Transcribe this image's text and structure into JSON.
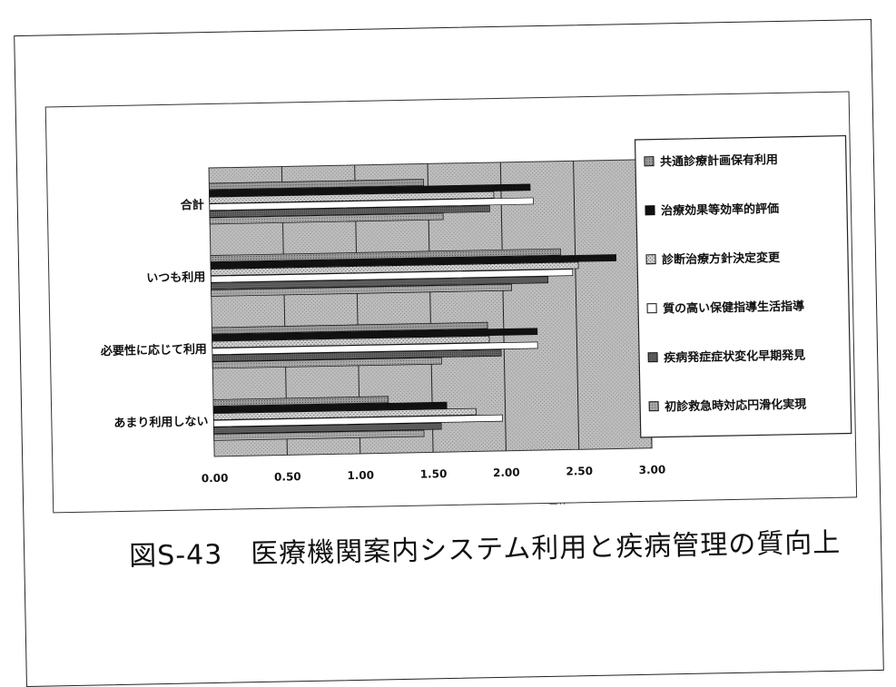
{
  "caption": "図S-43　医療機関案内システム利用と疾病管理の質向上",
  "chart_data": {
    "type": "bar",
    "orientation": "horizontal",
    "categories": [
      "合計",
      "いつも利用",
      "必要性に応じて利用",
      "あまり利用しない"
    ],
    "series": [
      {
        "name": "共通診療計画保有利用",
        "values": [
          1.47,
          2.4,
          1.89,
          1.2
        ]
      },
      {
        "name": "治療効果等効率的評価",
        "values": [
          2.2,
          2.78,
          2.23,
          1.6
        ]
      },
      {
        "name": "診断治療方針決定変更",
        "values": [
          1.95,
          2.52,
          1.9,
          1.8
        ]
      },
      {
        "name": "質の高い保健指導生活指導",
        "values": [
          2.22,
          2.48,
          2.23,
          1.98
        ]
      },
      {
        "name": "疾病発症症状変化早期発見",
        "values": [
          1.92,
          2.31,
          1.98,
          1.56
        ]
      },
      {
        "name": "初診救急時対応円滑化実現",
        "values": [
          1.6,
          2.06,
          1.57,
          1.44
        ]
      }
    ],
    "xlabel": "スコア平均",
    "xlim": [
      0,
      3.0
    ],
    "xticks": [
      "0.00",
      "0.50",
      "1.00",
      "1.50",
      "2.00",
      "2.50",
      "3.00"
    ],
    "grid": true,
    "legend_position": "right",
    "colors": {
      "plot_bg": "#b4b4b4",
      "gridline": "#222222",
      "bar_dark": "#111111",
      "bar_white": "#ffffff",
      "bar_hatch": "#8c8c8c"
    }
  }
}
